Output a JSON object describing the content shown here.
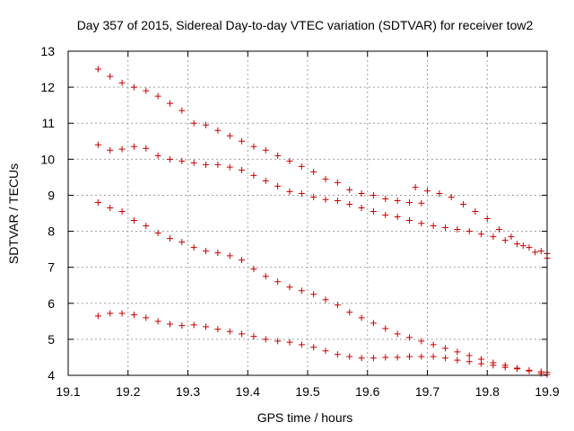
{
  "chart_data": {
    "type": "scatter",
    "title": "Day 357 of 2015, Sidereal Day-to-day VTEC variation (SDTVAR) for receiver tow2",
    "xlabel": "GPS time / hours",
    "ylabel": "SDTVAR / TECUs",
    "xlim": [
      19.1,
      19.9
    ],
    "ylim": [
      4,
      13
    ],
    "xticks": [
      "19.1",
      "19.2",
      "19.3",
      "19.4",
      "19.5",
      "19.6",
      "19.7",
      "19.8",
      "19.9"
    ],
    "yticks": [
      "4",
      "5",
      "6",
      "7",
      "8",
      "9",
      "10",
      "11",
      "12",
      "13"
    ],
    "grid": true,
    "marker": "+",
    "color": "#cc0000",
    "series": [
      {
        "name": "series-1",
        "points": [
          [
            19.15,
            12.5
          ],
          [
            19.17,
            12.3
          ],
          [
            19.19,
            12.12
          ],
          [
            19.21,
            12.0
          ],
          [
            19.23,
            11.9
          ],
          [
            19.25,
            11.75
          ],
          [
            19.27,
            11.55
          ],
          [
            19.29,
            11.35
          ],
          [
            19.31,
            11.0
          ],
          [
            19.33,
            10.95
          ],
          [
            19.35,
            10.8
          ],
          [
            19.37,
            10.65
          ],
          [
            19.39,
            10.5
          ],
          [
            19.41,
            10.35
          ],
          [
            19.43,
            10.25
          ],
          [
            19.45,
            10.1
          ],
          [
            19.47,
            9.95
          ],
          [
            19.49,
            9.8
          ],
          [
            19.51,
            9.65
          ],
          [
            19.53,
            9.45
          ],
          [
            19.55,
            9.35
          ],
          [
            19.57,
            9.15
          ],
          [
            19.59,
            9.05
          ],
          [
            19.61,
            9.0
          ],
          [
            19.63,
            8.9
          ],
          [
            19.65,
            8.85
          ],
          [
            19.67,
            8.8
          ],
          [
            19.69,
            8.78
          ]
        ]
      },
      {
        "name": "series-2",
        "points": [
          [
            19.15,
            10.4
          ],
          [
            19.17,
            10.25
          ],
          [
            19.19,
            10.28
          ],
          [
            19.21,
            10.35
          ],
          [
            19.23,
            10.3
          ],
          [
            19.25,
            10.1
          ],
          [
            19.27,
            10.0
          ],
          [
            19.29,
            9.95
          ],
          [
            19.31,
            9.9
          ],
          [
            19.33,
            9.85
          ],
          [
            19.35,
            9.85
          ],
          [
            19.37,
            9.78
          ],
          [
            19.39,
            9.7
          ],
          [
            19.41,
            9.55
          ],
          [
            19.43,
            9.4
          ],
          [
            19.45,
            9.25
          ],
          [
            19.47,
            9.1
          ],
          [
            19.49,
            9.05
          ],
          [
            19.51,
            8.95
          ],
          [
            19.53,
            8.88
          ],
          [
            19.55,
            8.85
          ],
          [
            19.57,
            8.75
          ],
          [
            19.59,
            8.65
          ],
          [
            19.61,
            8.55
          ],
          [
            19.63,
            8.45
          ],
          [
            19.65,
            8.4
          ],
          [
            19.67,
            8.3
          ],
          [
            19.69,
            8.22
          ],
          [
            19.71,
            8.15
          ],
          [
            19.73,
            8.1
          ],
          [
            19.75,
            8.05
          ],
          [
            19.77,
            8.0
          ],
          [
            19.79,
            7.92
          ],
          [
            19.81,
            7.85
          ],
          [
            19.83,
            7.75
          ],
          [
            19.85,
            7.65
          ],
          [
            19.87,
            7.55
          ],
          [
            19.89,
            7.45
          ],
          [
            19.9,
            7.38
          ]
        ]
      },
      {
        "name": "series-3",
        "points": [
          [
            19.15,
            8.8
          ],
          [
            19.17,
            8.65
          ],
          [
            19.19,
            8.55
          ],
          [
            19.21,
            8.3
          ],
          [
            19.23,
            8.15
          ],
          [
            19.25,
            7.95
          ],
          [
            19.27,
            7.8
          ],
          [
            19.29,
            7.7
          ],
          [
            19.31,
            7.55
          ],
          [
            19.33,
            7.45
          ],
          [
            19.35,
            7.4
          ],
          [
            19.37,
            7.32
          ],
          [
            19.39,
            7.2
          ],
          [
            19.41,
            6.95
          ],
          [
            19.43,
            6.75
          ],
          [
            19.45,
            6.6
          ],
          [
            19.47,
            6.45
          ],
          [
            19.49,
            6.35
          ],
          [
            19.51,
            6.25
          ],
          [
            19.53,
            6.1
          ],
          [
            19.55,
            5.95
          ],
          [
            19.57,
            5.75
          ],
          [
            19.59,
            5.6
          ],
          [
            19.61,
            5.45
          ],
          [
            19.63,
            5.3
          ],
          [
            19.65,
            5.15
          ],
          [
            19.67,
            5.05
          ],
          [
            19.69,
            4.95
          ],
          [
            19.71,
            4.85
          ],
          [
            19.73,
            4.75
          ],
          [
            19.75,
            4.65
          ],
          [
            19.77,
            4.55
          ],
          [
            19.79,
            4.45
          ],
          [
            19.81,
            4.35
          ],
          [
            19.83,
            4.28
          ],
          [
            19.85,
            4.2
          ],
          [
            19.87,
            4.12
          ],
          [
            19.89,
            4.05
          ],
          [
            19.9,
            4.02
          ]
        ]
      },
      {
        "name": "series-4",
        "points": [
          [
            19.15,
            5.65
          ],
          [
            19.17,
            5.72
          ],
          [
            19.19,
            5.72
          ],
          [
            19.21,
            5.68
          ],
          [
            19.23,
            5.6
          ],
          [
            19.25,
            5.5
          ],
          [
            19.27,
            5.42
          ],
          [
            19.29,
            5.38
          ],
          [
            19.31,
            5.4
          ],
          [
            19.33,
            5.35
          ],
          [
            19.35,
            5.28
          ],
          [
            19.37,
            5.22
          ],
          [
            19.39,
            5.15
          ],
          [
            19.41,
            5.08
          ],
          [
            19.43,
            5.0
          ],
          [
            19.45,
            4.95
          ],
          [
            19.47,
            4.92
          ],
          [
            19.49,
            4.85
          ],
          [
            19.51,
            4.78
          ],
          [
            19.53,
            4.68
          ],
          [
            19.55,
            4.58
          ],
          [
            19.57,
            4.52
          ],
          [
            19.59,
            4.48
          ],
          [
            19.61,
            4.48
          ],
          [
            19.63,
            4.5
          ],
          [
            19.65,
            4.5
          ],
          [
            19.67,
            4.52
          ],
          [
            19.69,
            4.52
          ],
          [
            19.71,
            4.52
          ],
          [
            19.73,
            4.48
          ],
          [
            19.75,
            4.42
          ],
          [
            19.77,
            4.38
          ],
          [
            19.79,
            4.32
          ],
          [
            19.81,
            4.28
          ],
          [
            19.83,
            4.22
          ],
          [
            19.85,
            4.18
          ],
          [
            19.87,
            4.14
          ],
          [
            19.89,
            4.1
          ],
          [
            19.9,
            4.08
          ]
        ]
      },
      {
        "name": "series-5",
        "points": [
          [
            19.68,
            9.22
          ],
          [
            19.7,
            9.12
          ],
          [
            19.72,
            9.05
          ],
          [
            19.74,
            8.95
          ],
          [
            19.76,
            8.75
          ],
          [
            19.78,
            8.55
          ],
          [
            19.8,
            8.35
          ],
          [
            19.82,
            8.05
          ],
          [
            19.84,
            7.85
          ],
          [
            19.86,
            7.6
          ],
          [
            19.88,
            7.42
          ],
          [
            19.9,
            7.25
          ]
        ]
      }
    ]
  }
}
